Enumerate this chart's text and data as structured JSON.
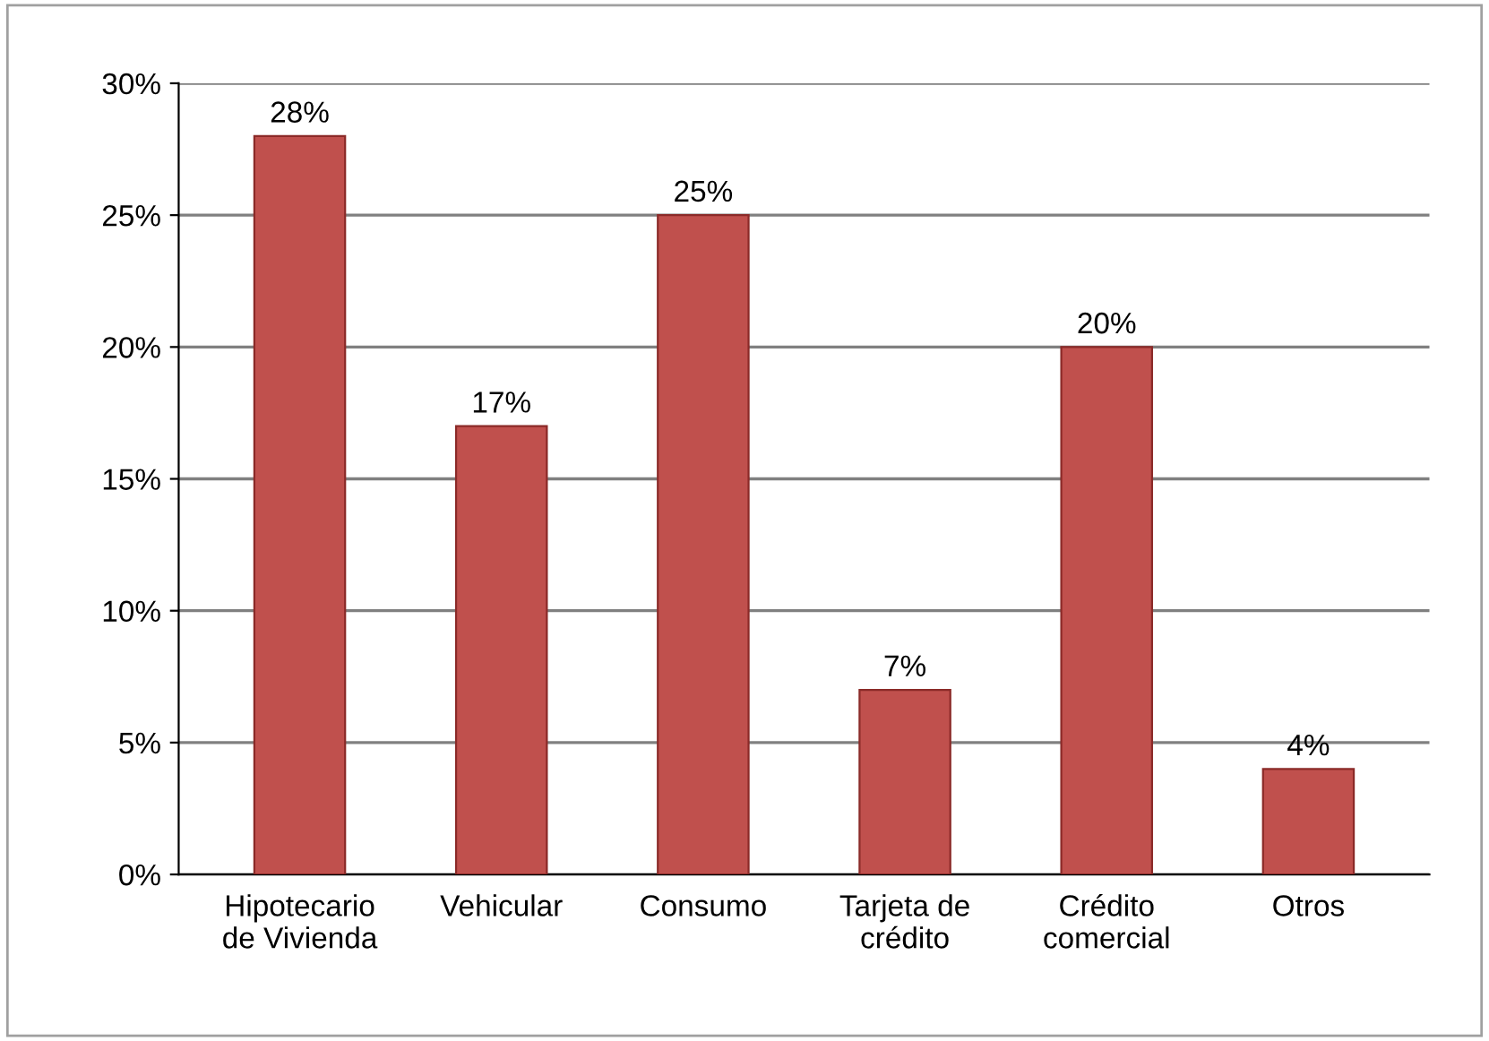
{
  "chart_data": {
    "type": "bar",
    "categories": [
      "Hipotecario\nde Vivienda",
      "Vehicular",
      "Consumo",
      "Tarjeta de\ncrédito",
      "Crédito\ncomercial",
      "Otros"
    ],
    "values": [
      28,
      17,
      25,
      7,
      20,
      4
    ],
    "value_labels": [
      "28%",
      "17%",
      "25%",
      "7%",
      "20%",
      "4%"
    ],
    "color": "#c0504d",
    "ylim": [
      0,
      30
    ],
    "yticks": [
      {
        "value": 0,
        "label": "0%"
      },
      {
        "value": 5,
        "label": "5%"
      },
      {
        "value": 10,
        "label": "10%"
      },
      {
        "value": 15,
        "label": "15%"
      },
      {
        "value": 20,
        "label": "20%"
      },
      {
        "value": 25,
        "label": "25%"
      },
      {
        "value": 30,
        "label": "30%"
      }
    ],
    "grid": "y"
  }
}
